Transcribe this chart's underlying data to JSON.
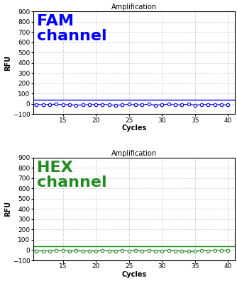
{
  "title": "Amplification",
  "xlabel": "Cycles",
  "ylabel": "RFU",
  "ylim": [
    -100,
    900
  ],
  "yticks": [
    -100,
    0,
    100,
    200,
    300,
    400,
    500,
    600,
    700,
    800,
    900
  ],
  "xlim": [
    10.5,
    41
  ],
  "xticks": [
    15,
    20,
    25,
    30,
    35,
    40
  ],
  "fam_color": "#0000FF",
  "hex_color": "#228B22",
  "fam_label": "FAM\nchannel",
  "hex_label": "HEX\nchannel",
  "fam_label_color": "#0000FF",
  "hex_label_color": "#228B22",
  "threshold_y": 38,
  "data_y": -5,
  "bg_color": "#ffffff",
  "label_fontsize": 16,
  "axis_title_fontsize": 7,
  "axis_label_fontsize": 7,
  "tick_fontsize": 6.5
}
